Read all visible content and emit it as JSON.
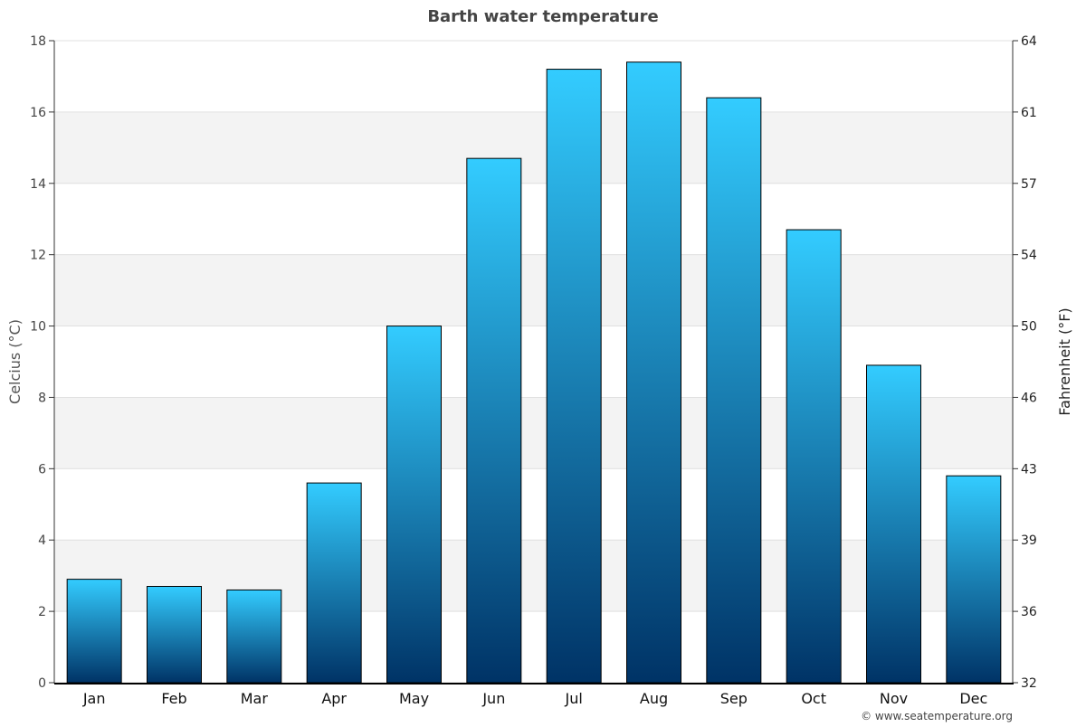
{
  "chart_data": {
    "type": "bar",
    "title": "Barth water temperature",
    "ylabel": "Celcius (°C)",
    "ylabel_right": "Fahrenheit (°F)",
    "xlabel": "",
    "categories": [
      "Jan",
      "Feb",
      "Mar",
      "Apr",
      "May",
      "Jun",
      "Jul",
      "Aug",
      "Sep",
      "Oct",
      "Nov",
      "Dec"
    ],
    "values": [
      2.9,
      2.7,
      2.6,
      5.6,
      10.0,
      14.7,
      17.2,
      17.4,
      16.4,
      12.7,
      8.9,
      5.8
    ],
    "ylim": [
      0,
      18
    ],
    "yticks": [
      0,
      2,
      4,
      6,
      8,
      10,
      12,
      14,
      16,
      18
    ],
    "yticks_right": [
      "32",
      "36",
      "39",
      "43",
      "46",
      "50",
      "54",
      "57",
      "61",
      "64"
    ],
    "grid": true,
    "colors": {
      "bar_top": "#33ccff",
      "bar_bottom": "#003366",
      "band": "#f3f3f3"
    },
    "credit": "© www.seatemperature.org"
  }
}
